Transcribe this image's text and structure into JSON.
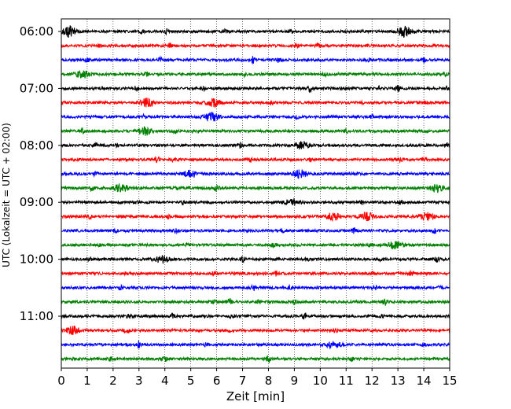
{
  "chart_data": {
    "type": "line",
    "subtype": "helicorder",
    "xlabel": "Zeit  [min]",
    "ylabel": "UTC (Lokalzeit = UTC + 02:00)",
    "xlim": [
      0,
      15
    ],
    "x_ticks": [
      "0",
      "1",
      "2",
      "3",
      "4",
      "5",
      "6",
      "7",
      "8",
      "9",
      "10",
      "11",
      "12",
      "13",
      "14",
      "15"
    ],
    "y_ticks": [
      {
        "label": "06:00",
        "row": 0
      },
      {
        "label": "07:00",
        "row": 4
      },
      {
        "label": "08:00",
        "row": 8
      },
      {
        "label": "09:00",
        "row": 12
      },
      {
        "label": "10:00",
        "row": 16
      },
      {
        "label": "11:00",
        "row": 20
      }
    ],
    "row_minutes": 15,
    "row_count": 24,
    "grid": "vertical dotted at each minute",
    "colors": [
      "#000000",
      "#ff0000",
      "#0000ff",
      "#008000"
    ],
    "series": [
      {
        "row": 0,
        "events": [
          [
            0.3,
            0.8
          ],
          [
            3.1,
            0.3
          ],
          [
            4.1,
            0.35
          ],
          [
            6.3,
            0.2
          ],
          [
            8.9,
            0.2
          ],
          [
            13.25,
            0.8
          ]
        ]
      },
      {
        "row": 1,
        "events": [
          [
            1.5,
            0.2
          ],
          [
            4.2,
            0.3
          ],
          [
            9.1,
            0.25
          ],
          [
            9.9,
            0.3
          ],
          [
            11.8,
            0.2
          ]
        ]
      },
      {
        "row": 2,
        "events": [
          [
            1.0,
            0.25
          ],
          [
            3.8,
            0.4
          ],
          [
            7.4,
            0.45
          ],
          [
            8.4,
            0.4
          ],
          [
            11.9,
            0.25
          ],
          [
            14.0,
            0.35
          ]
        ]
      },
      {
        "row": 3,
        "events": [
          [
            0.8,
            0.6
          ],
          [
            3.3,
            0.25
          ],
          [
            7.1,
            0.3
          ],
          [
            10.2,
            0.2
          ],
          [
            14.8,
            0.3
          ]
        ]
      },
      {
        "row": 4,
        "events": [
          [
            2.9,
            0.3
          ],
          [
            5.5,
            0.3
          ],
          [
            9.6,
            0.5
          ],
          [
            12.3,
            0.25
          ],
          [
            13.0,
            0.45
          ],
          [
            14.9,
            0.35
          ]
        ]
      },
      {
        "row": 5,
        "events": [
          [
            3.3,
            0.6
          ],
          [
            5.9,
            0.55
          ],
          [
            8.1,
            0.2
          ],
          [
            11.6,
            0.3
          ],
          [
            14.1,
            0.25
          ]
        ]
      },
      {
        "row": 6,
        "events": [
          [
            3.2,
            0.25
          ],
          [
            5.8,
            0.7
          ],
          [
            9.1,
            0.3
          ],
          [
            12.0,
            0.2
          ]
        ]
      },
      {
        "row": 7,
        "events": [
          [
            0.8,
            0.3
          ],
          [
            3.2,
            0.6
          ],
          [
            4.4,
            0.2
          ],
          [
            11.0,
            0.2
          ]
        ]
      },
      {
        "row": 8,
        "events": [
          [
            1.3,
            0.3
          ],
          [
            2.2,
            0.25
          ],
          [
            6.9,
            0.35
          ],
          [
            9.3,
            0.55
          ],
          [
            14.9,
            0.4
          ]
        ]
      },
      {
        "row": 9,
        "events": [
          [
            3.7,
            0.35
          ],
          [
            4.3,
            0.25
          ],
          [
            7.3,
            0.3
          ],
          [
            9.6,
            0.25
          ],
          [
            13.1,
            0.3
          ],
          [
            14.0,
            0.25
          ]
        ]
      },
      {
        "row": 10,
        "events": [
          [
            1.3,
            0.2
          ],
          [
            5.0,
            0.55
          ],
          [
            9.2,
            0.6
          ],
          [
            11.4,
            0.2
          ]
        ]
      },
      {
        "row": 11,
        "events": [
          [
            1.2,
            0.4
          ],
          [
            2.3,
            0.6
          ],
          [
            4.5,
            0.25
          ],
          [
            6.0,
            0.45
          ],
          [
            14.5,
            0.6
          ]
        ]
      },
      {
        "row": 12,
        "events": [
          [
            2.9,
            0.25
          ],
          [
            4.7,
            0.3
          ],
          [
            8.9,
            0.55
          ],
          [
            11.6,
            0.25
          ],
          [
            13.1,
            0.25
          ]
        ]
      },
      {
        "row": 13,
        "events": [
          [
            1.1,
            0.25
          ],
          [
            4.1,
            0.25
          ],
          [
            10.5,
            0.6
          ],
          [
            11.8,
            0.65
          ],
          [
            14.1,
            0.55
          ]
        ]
      },
      {
        "row": 14,
        "events": [
          [
            2.1,
            0.3
          ],
          [
            4.4,
            0.25
          ],
          [
            8.5,
            0.3
          ],
          [
            11.3,
            0.35
          ],
          [
            14.4,
            0.4
          ]
        ]
      },
      {
        "row": 15,
        "events": [
          [
            1.5,
            0.2
          ],
          [
            4.8,
            0.25
          ],
          [
            8.2,
            0.2
          ],
          [
            11.9,
            0.2
          ],
          [
            12.9,
            0.55
          ]
        ]
      },
      {
        "row": 16,
        "events": [
          [
            1.1,
            0.25
          ],
          [
            3.9,
            0.6
          ],
          [
            7.0,
            0.5
          ],
          [
            9.5,
            0.2
          ],
          [
            12.3,
            0.2
          ],
          [
            14.5,
            0.3
          ]
        ]
      },
      {
        "row": 17,
        "events": [
          [
            2.5,
            0.25
          ],
          [
            5.9,
            0.45
          ],
          [
            8.3,
            0.35
          ],
          [
            12.0,
            0.2
          ],
          [
            13.5,
            0.5
          ]
        ]
      },
      {
        "row": 18,
        "events": [
          [
            2.3,
            0.25
          ],
          [
            7.4,
            0.45
          ],
          [
            8.8,
            0.35
          ],
          [
            12.1,
            0.25
          ],
          [
            14.6,
            0.2
          ]
        ]
      },
      {
        "row": 19,
        "events": [
          [
            5.9,
            0.3
          ],
          [
            6.5,
            0.45
          ],
          [
            7.6,
            0.35
          ],
          [
            9.0,
            0.3
          ],
          [
            12.5,
            0.45
          ]
        ]
      },
      {
        "row": 20,
        "events": [
          [
            2.6,
            0.3
          ],
          [
            4.3,
            0.35
          ],
          [
            6.6,
            0.25
          ],
          [
            9.4,
            0.45
          ],
          [
            12.4,
            0.2
          ]
        ]
      },
      {
        "row": 21,
        "events": [
          [
            0.45,
            0.55
          ],
          [
            2.5,
            0.5
          ],
          [
            6.5,
            0.2
          ],
          [
            10.6,
            0.25
          ]
        ]
      },
      {
        "row": 22,
        "events": [
          [
            3.0,
            0.5
          ],
          [
            5.6,
            0.25
          ],
          [
            10.5,
            0.55
          ],
          [
            14.0,
            0.2
          ]
        ]
      },
      {
        "row": 23,
        "events": [
          [
            1.9,
            0.4
          ],
          [
            4.0,
            0.35
          ],
          [
            8.0,
            0.45
          ],
          [
            11.2,
            0.25
          ]
        ]
      }
    ]
  }
}
